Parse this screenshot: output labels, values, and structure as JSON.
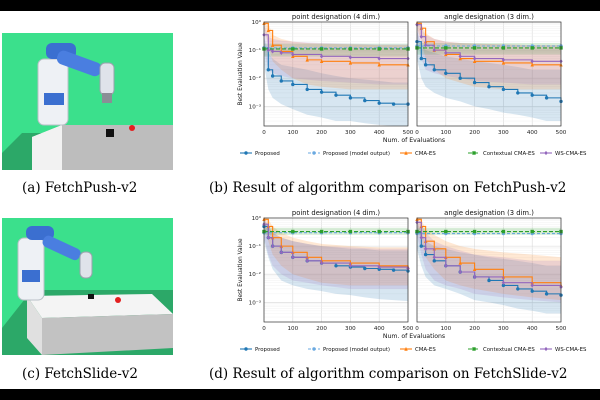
{
  "figure": {
    "caption_a": "(a) FetchPush-v2",
    "caption_b": "(b) Result of algorithm comparison on FetchPush-v2",
    "caption_c": "(c) FetchSlide-v2",
    "caption_d": "(d) Result of algorithm comparison on FetchSlide-v2"
  },
  "colors": {
    "Proposed": "#1f77b4",
    "Proposed (model output)": "#6aa9e0",
    "CMA-ES": "#ff7f0e",
    "Contextual CMA-ES": "#2ca02c",
    "WS-CMA-ES": "#9467bd",
    "scene_background": "#3be08c"
  },
  "chart_data": [
    {
      "type": "line",
      "figure": "b",
      "title": "point designation (4 dim.)",
      "xlabel": "Num. of Evaluations",
      "ylabel": "Best Evaluation Value",
      "yscale": "log",
      "xlim": [
        0,
        500
      ],
      "ylim": [
        0.0002,
        1
      ],
      "xticks": [
        "0",
        "100",
        "200",
        "300",
        "400",
        "500"
      ],
      "yticks": [
        "10⁻³",
        "10⁻²",
        "10⁻¹",
        "10⁰"
      ],
      "grid": true,
      "series": [
        {
          "name": "Proposed",
          "x": [
            0,
            15,
            30,
            60,
            100,
            150,
            200,
            250,
            300,
            350,
            400,
            450,
            500
          ],
          "y": [
            0.12,
            0.02,
            0.012,
            0.008,
            0.006,
            0.004,
            0.0032,
            0.0025,
            0.002,
            0.0016,
            0.0013,
            0.0012,
            0.0012
          ],
          "lo": [
            0.03,
            0.004,
            0.002,
            0.0012,
            0.0008,
            0.0005,
            0.0004,
            0.0003,
            0.0003,
            0.00025,
            0.00022,
            0.0002,
            0.0002
          ],
          "hi": [
            0.3,
            0.08,
            0.05,
            0.03,
            0.025,
            0.02,
            0.015,
            0.012,
            0.01,
            0.009,
            0.008,
            0.007,
            0.007
          ]
        },
        {
          "name": "Proposed (model output)",
          "x": [
            0,
            500
          ],
          "y": [
            0.12,
            0.12
          ]
        },
        {
          "name": "CMA-ES",
          "x": [
            0,
            15,
            30,
            60,
            100,
            150,
            200,
            300,
            400,
            500
          ],
          "y": [
            0.9,
            0.5,
            0.15,
            0.09,
            0.06,
            0.045,
            0.04,
            0.035,
            0.03,
            0.03
          ],
          "lo": [
            0.6,
            0.15,
            0.04,
            0.02,
            0.01,
            0.006,
            0.005,
            0.004,
            0.004,
            0.004
          ],
          "hi": [
            1,
            0.9,
            0.35,
            0.25,
            0.2,
            0.18,
            0.17,
            0.16,
            0.15,
            0.15
          ]
        },
        {
          "name": "Contextual CMA-ES",
          "x": [
            0,
            100,
            200,
            300,
            400,
            500
          ],
          "y": [
            0.11,
            0.11,
            0.11,
            0.11,
            0.11,
            0.11
          ],
          "lo": [
            0.06,
            0.06,
            0.06,
            0.06,
            0.06,
            0.06
          ],
          "hi": [
            0.17,
            0.17,
            0.17,
            0.17,
            0.17,
            0.17
          ]
        },
        {
          "name": "WS-CMA-ES",
          "x": [
            0,
            15,
            30,
            60,
            100,
            200,
            300,
            400,
            500
          ],
          "y": [
            0.35,
            0.1,
            0.09,
            0.08,
            0.07,
            0.06,
            0.055,
            0.05,
            0.05
          ],
          "lo": [
            0.1,
            0.02,
            0.015,
            0.012,
            0.01,
            0.008,
            0.007,
            0.006,
            0.006
          ],
          "hi": [
            0.8,
            0.3,
            0.25,
            0.22,
            0.2,
            0.18,
            0.17,
            0.16,
            0.16
          ]
        }
      ]
    },
    {
      "type": "line",
      "figure": "b",
      "title": "angle designation (3 dim.)",
      "xlabel": "Num. of Evaluations",
      "yscale": "log",
      "xlim": [
        0,
        500
      ],
      "ylim": [
        0.0002,
        1
      ],
      "xticks": [
        "0",
        "100",
        "200",
        "300",
        "400",
        "500"
      ],
      "grid": true,
      "series": [
        {
          "name": "Proposed",
          "x": [
            0,
            15,
            30,
            60,
            100,
            150,
            200,
            250,
            300,
            350,
            400,
            450,
            500
          ],
          "y": [
            0.2,
            0.05,
            0.03,
            0.02,
            0.015,
            0.01,
            0.007,
            0.005,
            0.004,
            0.003,
            0.0025,
            0.002,
            0.0015
          ],
          "lo": [
            0.05,
            0.01,
            0.005,
            0.003,
            0.002,
            0.0015,
            0.001,
            0.0008,
            0.0006,
            0.0005,
            0.0004,
            0.0003,
            0.0003
          ],
          "hi": [
            0.5,
            0.15,
            0.1,
            0.08,
            0.06,
            0.05,
            0.04,
            0.035,
            0.03,
            0.025,
            0.02,
            0.02,
            0.02
          ]
        },
        {
          "name": "Proposed (model output)",
          "x": [
            0,
            500
          ],
          "y": [
            0.14,
            0.14
          ]
        },
        {
          "name": "CMA-ES",
          "x": [
            0,
            15,
            30,
            60,
            100,
            150,
            200,
            300,
            400,
            500
          ],
          "y": [
            0.9,
            0.6,
            0.2,
            0.1,
            0.07,
            0.05,
            0.04,
            0.035,
            0.03,
            0.03
          ],
          "lo": [
            0.6,
            0.2,
            0.05,
            0.02,
            0.01,
            0.007,
            0.005,
            0.004,
            0.004,
            0.004
          ],
          "hi": [
            1,
            0.9,
            0.4,
            0.25,
            0.2,
            0.18,
            0.17,
            0.16,
            0.15,
            0.15
          ]
        },
        {
          "name": "Contextual CMA-ES",
          "x": [
            0,
            100,
            200,
            300,
            400,
            500
          ],
          "y": [
            0.12,
            0.12,
            0.12,
            0.12,
            0.12,
            0.12
          ],
          "lo": [
            0.07,
            0.07,
            0.07,
            0.07,
            0.07,
            0.07
          ],
          "hi": [
            0.18,
            0.18,
            0.18,
            0.18,
            0.18,
            0.18
          ]
        },
        {
          "name": "WS-CMA-ES",
          "x": [
            0,
            15,
            30,
            60,
            100,
            150,
            200,
            300,
            400,
            500
          ],
          "y": [
            0.8,
            0.3,
            0.15,
            0.1,
            0.08,
            0.06,
            0.05,
            0.045,
            0.04,
            0.04
          ],
          "lo": [
            0.3,
            0.05,
            0.02,
            0.015,
            0.012,
            0.01,
            0.008,
            0.007,
            0.006,
            0.006
          ],
          "hi": [
            1,
            0.6,
            0.35,
            0.25,
            0.2,
            0.18,
            0.17,
            0.16,
            0.15,
            0.15
          ]
        }
      ]
    },
    {
      "type": "line",
      "figure": "d",
      "title": "point designation (4 dim.)",
      "xlabel": "Num. of Evaluations",
      "ylabel": "Best Evaluation Value",
      "yscale": "log",
      "xlim": [
        0,
        500
      ],
      "ylim": [
        0.0002,
        1
      ],
      "xticks": [
        "0",
        "100",
        "200",
        "300",
        "400",
        "500"
      ],
      "yticks": [
        "10⁻³",
        "10⁻²",
        "10⁻¹",
        "10⁰"
      ],
      "grid": true,
      "series": [
        {
          "name": "Proposed",
          "x": [
            0,
            15,
            30,
            60,
            100,
            150,
            200,
            250,
            300,
            350,
            400,
            450,
            500
          ],
          "y": [
            0.5,
            0.2,
            0.1,
            0.06,
            0.04,
            0.03,
            0.025,
            0.02,
            0.018,
            0.016,
            0.015,
            0.014,
            0.013
          ],
          "lo": [
            0.15,
            0.04,
            0.015,
            0.006,
            0.004,
            0.003,
            0.0025,
            0.002,
            0.0018,
            0.0015,
            0.0013,
            0.0012,
            0.0011
          ],
          "hi": [
            0.9,
            0.5,
            0.3,
            0.2,
            0.15,
            0.12,
            0.1,
            0.09,
            0.08,
            0.08,
            0.07,
            0.07,
            0.07
          ]
        },
        {
          "name": "Proposed (model output)",
          "x": [
            0,
            500
          ],
          "y": [
            0.3,
            0.3
          ]
        },
        {
          "name": "CMA-ES",
          "x": [
            0,
            15,
            30,
            60,
            100,
            150,
            200,
            300,
            400,
            500
          ],
          "y": [
            0.9,
            0.5,
            0.2,
            0.1,
            0.06,
            0.04,
            0.03,
            0.025,
            0.02,
            0.018
          ],
          "lo": [
            0.5,
            0.15,
            0.05,
            0.02,
            0.01,
            0.007,
            0.005,
            0.004,
            0.004,
            0.004
          ],
          "hi": [
            1,
            0.9,
            0.5,
            0.3,
            0.2,
            0.15,
            0.12,
            0.1,
            0.09,
            0.09
          ]
        },
        {
          "name": "Contextual CMA-ES",
          "x": [
            0,
            100,
            200,
            300,
            400,
            500
          ],
          "y": [
            0.33,
            0.33,
            0.33,
            0.33,
            0.33,
            0.33
          ],
          "lo": [
            0.25,
            0.25,
            0.25,
            0.25,
            0.25,
            0.25
          ],
          "hi": [
            0.45,
            0.45,
            0.45,
            0.45,
            0.45,
            0.45
          ]
        },
        {
          "name": "WS-CMA-ES",
          "x": [
            0,
            15,
            30,
            60,
            100,
            150,
            200,
            300,
            400,
            500
          ],
          "y": [
            0.6,
            0.2,
            0.1,
            0.06,
            0.04,
            0.03,
            0.025,
            0.02,
            0.018,
            0.016
          ],
          "lo": [
            0.2,
            0.05,
            0.02,
            0.01,
            0.006,
            0.005,
            0.004,
            0.003,
            0.003,
            0.003
          ],
          "hi": [
            1,
            0.5,
            0.3,
            0.2,
            0.15,
            0.12,
            0.1,
            0.09,
            0.08,
            0.08
          ]
        }
      ]
    },
    {
      "type": "line",
      "figure": "d",
      "title": "angle designation (3 dim.)",
      "xlabel": "Num. of Evaluations",
      "yscale": "log",
      "xlim": [
        0,
        500
      ],
      "ylim": [
        0.0002,
        1
      ],
      "xticks": [
        "0",
        "100",
        "200",
        "300",
        "400",
        "500"
      ],
      "grid": true,
      "series": [
        {
          "name": "Proposed",
          "x": [
            0,
            15,
            30,
            60,
            100,
            150,
            200,
            250,
            300,
            350,
            400,
            450,
            500
          ],
          "y": [
            0.3,
            0.1,
            0.05,
            0.03,
            0.02,
            0.012,
            0.008,
            0.006,
            0.004,
            0.003,
            0.0025,
            0.002,
            0.0018
          ],
          "lo": [
            0.08,
            0.02,
            0.008,
            0.004,
            0.003,
            0.002,
            0.0012,
            0.001,
            0.0008,
            0.0006,
            0.0005,
            0.0004,
            0.0004
          ],
          "hi": [
            0.8,
            0.3,
            0.15,
            0.1,
            0.08,
            0.06,
            0.05,
            0.04,
            0.035,
            0.03,
            0.025,
            0.02,
            0.02
          ]
        },
        {
          "name": "Proposed (model output)",
          "x": [
            0,
            500
          ],
          "y": [
            0.28,
            0.28
          ]
        },
        {
          "name": "CMA-ES",
          "x": [
            0,
            15,
            30,
            60,
            100,
            150,
            200,
            300,
            400,
            500
          ],
          "y": [
            0.9,
            0.5,
            0.15,
            0.08,
            0.04,
            0.025,
            0.015,
            0.008,
            0.005,
            0.004
          ],
          "lo": [
            0.5,
            0.15,
            0.04,
            0.015,
            0.006,
            0.004,
            0.003,
            0.002,
            0.0015,
            0.0012
          ],
          "hi": [
            1,
            0.9,
            0.4,
            0.25,
            0.15,
            0.1,
            0.08,
            0.06,
            0.05,
            0.04
          ]
        },
        {
          "name": "Contextual CMA-ES",
          "x": [
            0,
            100,
            200,
            300,
            400,
            500
          ],
          "y": [
            0.33,
            0.33,
            0.33,
            0.33,
            0.33,
            0.33
          ],
          "lo": [
            0.25,
            0.25,
            0.25,
            0.25,
            0.25,
            0.25
          ],
          "hi": [
            0.45,
            0.45,
            0.45,
            0.45,
            0.45,
            0.45
          ]
        },
        {
          "name": "WS-CMA-ES",
          "x": [
            0,
            15,
            30,
            60,
            100,
            150,
            200,
            300,
            400,
            500
          ],
          "y": [
            0.7,
            0.2,
            0.08,
            0.04,
            0.02,
            0.012,
            0.008,
            0.005,
            0.004,
            0.0035
          ],
          "lo": [
            0.25,
            0.05,
            0.015,
            0.006,
            0.004,
            0.003,
            0.002,
            0.0015,
            0.0012,
            0.001
          ],
          "hi": [
            1,
            0.6,
            0.3,
            0.15,
            0.1,
            0.07,
            0.05,
            0.04,
            0.03,
            0.03
          ]
        }
      ]
    }
  ],
  "legend": {
    "placement": "bottom",
    "entries": [
      "Proposed",
      "Proposed (model output)",
      "CMA-ES",
      "Contextual CMA-ES",
      "WS-CMA-ES"
    ]
  }
}
